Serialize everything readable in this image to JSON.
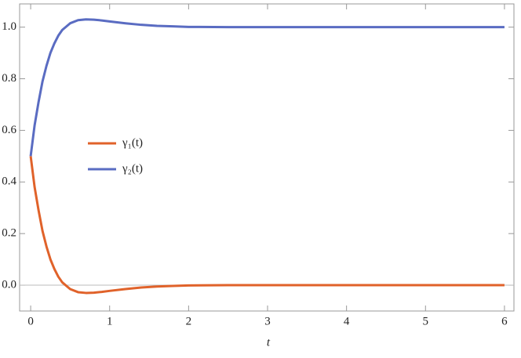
{
  "chart_data": {
    "type": "line",
    "x_label": "t",
    "x": [
      0,
      0.05,
      0.1,
      0.15,
      0.2,
      0.25,
      0.3,
      0.35,
      0.4,
      0.5,
      0.6,
      0.7,
      0.8,
      0.9,
      1.0,
      1.2,
      1.4,
      1.6,
      1.8,
      2.0,
      2.5,
      3,
      4,
      5,
      6
    ],
    "series": [
      {
        "name": "γ₁(t)",
        "color": "#e0622a",
        "values": [
          0.5,
          0.38,
          0.29,
          0.21,
          0.15,
          0.1,
          0.063,
          0.033,
          0.011,
          -0.015,
          -0.027,
          -0.03,
          -0.029,
          -0.026,
          -0.022,
          -0.015,
          -0.009,
          -0.005,
          -0.003,
          -0.001,
          0,
          0,
          0,
          0,
          0
        ]
      },
      {
        "name": "γ₂(t)",
        "color": "#5a6cc2",
        "values": [
          0.5,
          0.62,
          0.71,
          0.79,
          0.85,
          0.9,
          0.937,
          0.967,
          0.989,
          1.015,
          1.027,
          1.03,
          1.029,
          1.026,
          1.022,
          1.015,
          1.009,
          1.005,
          1.003,
          1.001,
          1,
          1,
          1,
          1,
          1
        ]
      }
    ],
    "xlim": [
      -0.14,
      6.12
    ],
    "ylim": [
      -0.1,
      1.09
    ],
    "xticks": [
      0,
      1,
      2,
      3,
      4,
      5,
      6
    ],
    "yticks": [
      {
        "value": 0,
        "label": "0.0"
      },
      0.2,
      0.4,
      0.6,
      0.8,
      {
        "value": 1,
        "label": "1.0"
      }
    ],
    "legend": "center-left"
  }
}
